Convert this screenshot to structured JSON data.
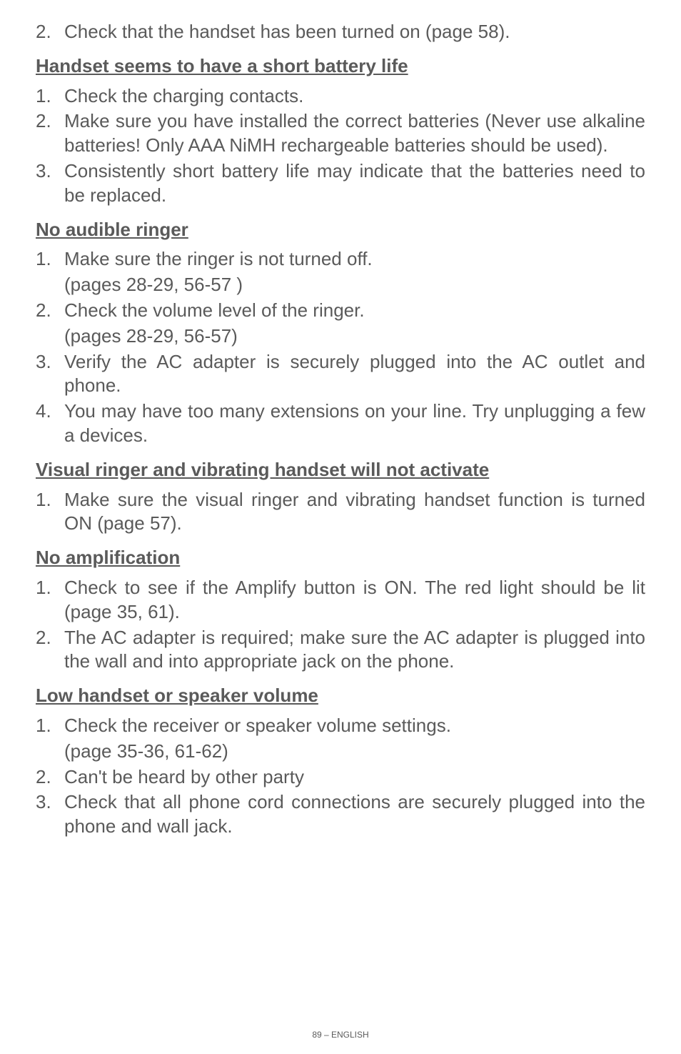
{
  "colors": {
    "text": "#5a5a5a",
    "background": "#ffffff"
  },
  "typography": {
    "body_fontsize": 26,
    "footer_fontsize": 12,
    "font_family": "Arial, Helvetica, sans-serif"
  },
  "intro_item": {
    "num": "2.",
    "text": "Check that the handset has been turned on (page 58)."
  },
  "sections": [
    {
      "heading": "Handset seems to have a short battery life",
      "items": [
        {
          "num": "1.",
          "text": "Check the charging contacts."
        },
        {
          "num": "2.",
          "text": "Make sure you have installed the correct batteries (Never use alkaline batteries!  Only AAA NiMH rechargeable batteries should be used)."
        },
        {
          "num": "3.",
          "text": "Consistently short battery life may indicate that the batteries need to be replaced."
        }
      ]
    },
    {
      "heading": "No audible ringer",
      "items": [
        {
          "num": "1.",
          "text": "Make sure the ringer is not turned off.",
          "sub": "(pages 28-29, 56-57 )"
        },
        {
          "num": "2.",
          "text": "Check the volume level of the ringer.",
          "sub": "(pages 28-29, 56-57)"
        },
        {
          "num": "3.",
          "text": "Verify the AC adapter is securely plugged into the AC outlet and phone."
        },
        {
          "num": "4.",
          "text": "You may have too many extensions on your line. Try unplugging a few a devices."
        }
      ]
    },
    {
      "heading": "Visual ringer and vibrating handset will not activate",
      "items": [
        {
          "num": "1.",
          "text": "Make sure the visual ringer and vibrating handset function is turned ON (page 57)."
        }
      ]
    },
    {
      "heading": "No amplification",
      "items": [
        {
          "num": "1.",
          "text": "Check to see if the Amplify button is ON. The red light should be lit (page 35, 61)."
        },
        {
          "num": "2.",
          "text": "The AC adapter is required; make sure the AC adapter is plugged into the wall and into appropriate jack on the phone."
        }
      ]
    },
    {
      "heading": "Low handset or speaker volume",
      "items": [
        {
          "num": "1.",
          "text": "Check the receiver or speaker volume settings.",
          "sub": "(page 35-36, 61-62)"
        },
        {
          "num": "2.",
          "text": "Can't be heard by other party"
        },
        {
          "num": "3.",
          "text": "Check that all phone cord connections are securely plugged into the phone and wall jack."
        }
      ]
    }
  ],
  "footer": "89 – ENGLISH"
}
